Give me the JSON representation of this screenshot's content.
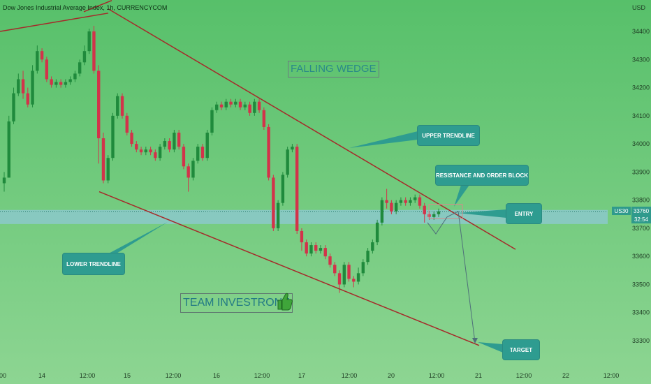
{
  "header": {
    "title": "Dow Jones Industrial Average Index, 1h, CURRENCYCOM",
    "currency": "USD"
  },
  "chart_data": {
    "type": "candlestick",
    "symbol": "US30",
    "interval": "1h",
    "ylim": [
      33200,
      34500
    ],
    "y_ticks": [
      33300,
      33400,
      33500,
      33600,
      33700,
      33800,
      33900,
      34000,
      34100,
      34200,
      34300,
      34400
    ],
    "x_ticks": [
      "00",
      "14",
      "12:00",
      "15",
      "12:00",
      "16",
      "12:00",
      "17",
      "12:00",
      "20",
      "12:00",
      "21",
      "12:00",
      "22",
      "12:00"
    ],
    "current_price": 33760,
    "countdown": "32:54",
    "entry_zone": [
      33715,
      33765
    ],
    "annotations": {
      "falling_wedge": "FALLING WEDGE",
      "upper_trendline": "UPPER TRENDLINE",
      "resistance": "RESISTANCE AND ORDER BLOCK",
      "entry": "ENTRY",
      "lower_trendline": "LOWER TRENDLINE",
      "target": "TARGET",
      "team": "TEAM INVESTRONE"
    },
    "candles": [
      [
        33860,
        33880,
        33840,
        33900,
        33830
      ],
      [
        33880,
        34080,
        34090,
        34060,
        34100,
        34060
      ],
      [
        34080,
        34180,
        34190,
        34070,
        34200,
        34070
      ],
      [
        34180,
        34230,
        34240,
        34170,
        34250,
        34170
      ],
      [
        34230,
        34180,
        34250,
        34170,
        34160,
        34260
      ],
      [
        34180,
        34140,
        34200,
        34130,
        34190
      ],
      [
        34140,
        34260,
        34270,
        34130,
        34280,
        34130
      ],
      [
        34260,
        34330,
        34340,
        34250,
        34350,
        34250
      ],
      [
        34330,
        34300,
        34340,
        34290
      ],
      [
        34300,
        34230,
        34310,
        34220
      ],
      [
        34230,
        34210,
        34240,
        34200
      ],
      [
        34210,
        34220,
        34230,
        34200
      ],
      [
        34220,
        34210,
        34230,
        34200
      ],
      [
        34210,
        34220,
        34230,
        34200
      ],
      [
        34220,
        34230,
        34240,
        34210
      ],
      [
        34230,
        34250,
        34260,
        34220
      ],
      [
        34250,
        34290,
        34300,
        34240
      ],
      [
        34290,
        34330,
        34350,
        34280
      ],
      [
        34330,
        34400,
        34410,
        34320
      ],
      [
        34400,
        34260,
        34420,
        34250
      ],
      [
        34260,
        34020,
        34280,
        33930
      ],
      [
        34020,
        33870,
        34040,
        33860
      ],
      [
        33870,
        33950,
        33960,
        33860
      ],
      [
        33950,
        34100,
        34110,
        33940
      ],
      [
        34100,
        34170,
        34180,
        34090
      ],
      [
        34170,
        34100,
        34180,
        34090
      ],
      [
        34100,
        34040,
        34110,
        34030
      ],
      [
        34040,
        34000,
        34050,
        33990
      ],
      [
        34000,
        33980,
        34010,
        33970
      ],
      [
        33980,
        33970,
        33990,
        33960
      ],
      [
        33970,
        33980,
        33990,
        33960
      ],
      [
        33980,
        33970,
        33990,
        33960
      ],
      [
        33970,
        33950,
        33980,
        33940
      ],
      [
        33950,
        33990,
        34000,
        33940
      ],
      [
        33990,
        34010,
        34020,
        33980
      ],
      [
        34010,
        33980,
        34020,
        33970
      ],
      [
        33980,
        34040,
        34050,
        33970
      ],
      [
        34040,
        33990,
        34050,
        33980
      ],
      [
        33990,
        33920,
        34000,
        33910
      ],
      [
        33920,
        33880,
        33930,
        33830
      ],
      [
        33880,
        33940,
        33950,
        33870
      ],
      [
        33940,
        33990,
        34000,
        33930
      ],
      [
        33990,
        33950,
        34000,
        33940
      ],
      [
        33950,
        34040,
        34050,
        33940
      ],
      [
        34040,
        34120,
        34130,
        34030
      ],
      [
        34120,
        34140,
        34150,
        34110
      ],
      [
        34140,
        34130,
        34150,
        34120
      ],
      [
        34130,
        34150,
        34160,
        34120
      ],
      [
        34150,
        34140,
        34160,
        34130
      ],
      [
        34140,
        34150,
        34160,
        34130
      ],
      [
        34150,
        34130,
        34160,
        34120
      ],
      [
        34130,
        34140,
        34150,
        34120
      ],
      [
        34140,
        34110,
        34150,
        34100
      ],
      [
        34110,
        34150,
        34160,
        34100
      ],
      [
        34150,
        34120,
        34160,
        34110
      ],
      [
        34120,
        34060,
        34130,
        34050
      ],
      [
        34060,
        33880,
        34070,
        33870
      ],
      [
        33880,
        33700,
        33890,
        33690
      ],
      [
        33700,
        33790,
        33800,
        33690
      ],
      [
        33790,
        33890,
        33900,
        33780
      ],
      [
        33890,
        33980,
        33990,
        33880
      ],
      [
        33980,
        33990,
        34000,
        33970
      ],
      [
        33990,
        33690,
        34000,
        33680
      ],
      [
        33690,
        33650,
        33700,
        33620
      ],
      [
        33650,
        33610,
        33660,
        33600
      ],
      [
        33610,
        33640,
        33650,
        33600
      ],
      [
        33640,
        33620,
        33650,
        33610
      ],
      [
        33620,
        33630,
        33640,
        33610
      ],
      [
        33630,
        33600,
        33640,
        33590
      ],
      [
        33600,
        33570,
        33610,
        33560
      ],
      [
        33570,
        33540,
        33580,
        33530
      ],
      [
        33540,
        33500,
        33550,
        33470
      ],
      [
        33500,
        33570,
        33580,
        33490
      ],
      [
        33570,
        33520,
        33580,
        33510
      ],
      [
        33520,
        33510,
        33530,
        33490
      ],
      [
        33510,
        33540,
        33560,
        33500
      ],
      [
        33540,
        33580,
        33590,
        33530
      ],
      [
        33580,
        33620,
        33630,
        33570
      ],
      [
        33620,
        33650,
        33660,
        33610
      ],
      [
        33650,
        33720,
        33730,
        33640
      ],
      [
        33720,
        33800,
        33810,
        33710
      ],
      [
        33800,
        33790,
        33840,
        33770
      ],
      [
        33790,
        33760,
        33800,
        33750
      ],
      [
        33760,
        33790,
        33800,
        33750
      ],
      [
        33790,
        33800,
        33810,
        33780
      ],
      [
        33800,
        33790,
        33810,
        33780
      ],
      [
        33790,
        33800,
        33810,
        33780
      ],
      [
        33800,
        33810,
        33820,
        33790
      ],
      [
        33810,
        33780,
        33820,
        33770
      ],
      [
        33780,
        33750,
        33790,
        33720
      ],
      [
        33750,
        33740,
        33760,
        33730
      ],
      [
        33740,
        33750,
        33760,
        33730
      ],
      [
        33750,
        33760,
        33770,
        33740
      ]
    ]
  }
}
